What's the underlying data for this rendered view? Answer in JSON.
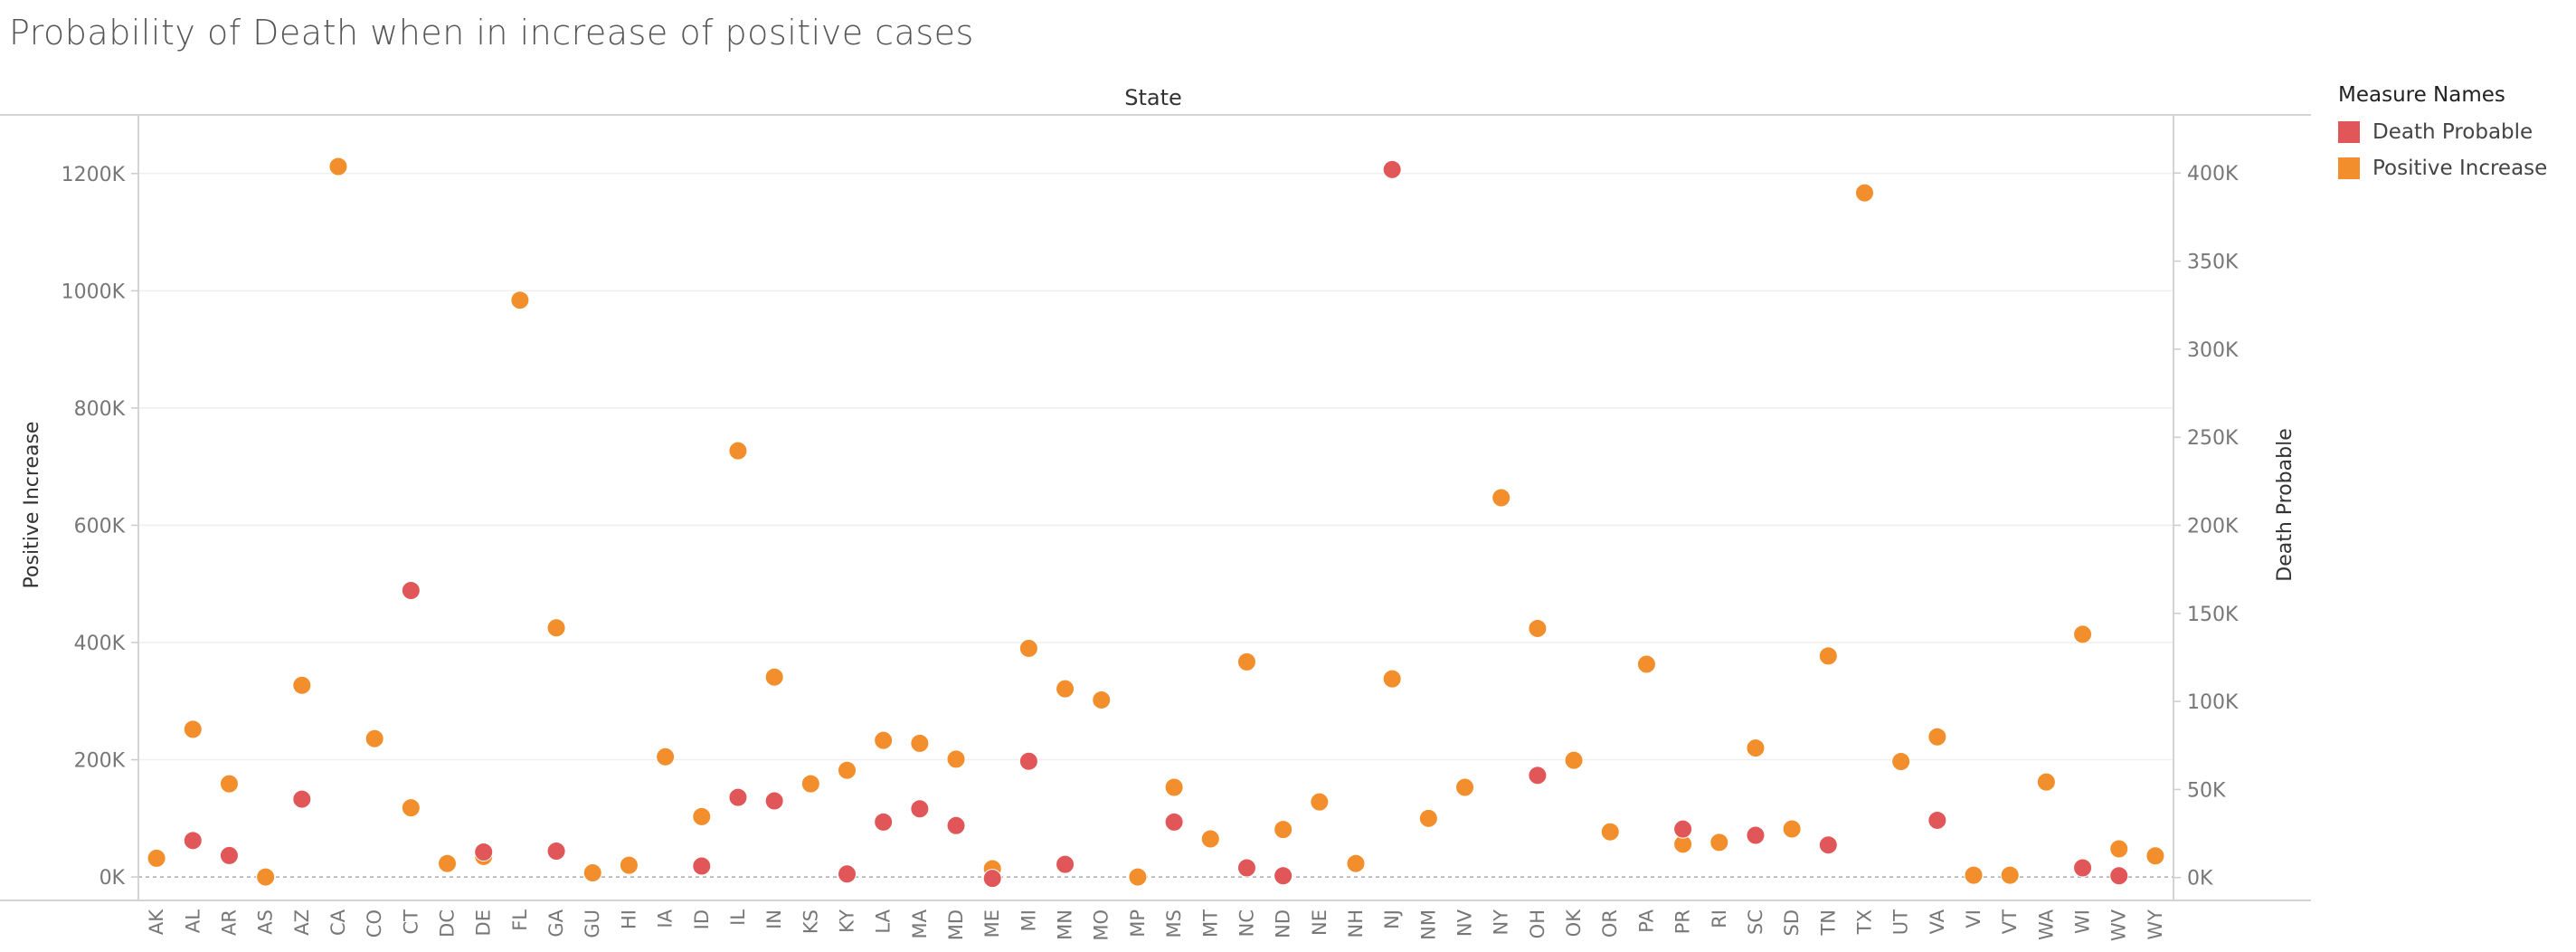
{
  "title": "Probability of Death when in increase of positive cases",
  "chart_data": {
    "type": "scatter",
    "title": "Probability of Death when in increase of positive cases",
    "column_header": "State",
    "xlabel": "",
    "y_left_label": "Positive Increase",
    "y_right_label": "Death Probable",
    "y_left_ticks": [
      "0K",
      "200K",
      "400K",
      "600K",
      "800K",
      "1000K",
      "1200K"
    ],
    "y_right_ticks": [
      "0K",
      "50K",
      "100K",
      "150K",
      "200K",
      "250K",
      "300K",
      "350K",
      "400K"
    ],
    "y_left_lim": [
      -40000,
      1300000
    ],
    "y_right_lim": [
      -13000,
      433000
    ],
    "grid": true,
    "legend_position": "right",
    "categories": [
      "AK",
      "AL",
      "AR",
      "AS",
      "AZ",
      "CA",
      "CO",
      "CT",
      "DC",
      "DE",
      "FL",
      "GA",
      "GU",
      "HI",
      "IA",
      "ID",
      "IL",
      "IN",
      "KS",
      "KY",
      "LA",
      "MA",
      "MD",
      "ME",
      "MI",
      "MN",
      "MO",
      "MP",
      "MS",
      "MT",
      "NC",
      "ND",
      "NE",
      "NH",
      "NJ",
      "NM",
      "NV",
      "NY",
      "OH",
      "OK",
      "OR",
      "PA",
      "PR",
      "RI",
      "SC",
      "SD",
      "TN",
      "TX",
      "UT",
      "VA",
      "VI",
      "VT",
      "WA",
      "WI",
      "WV",
      "WY"
    ],
    "series": [
      {
        "name": "Death Probable",
        "color": "#e15759",
        "axis": "right",
        "values": [
          null,
          21000,
          12500,
          null,
          44500,
          null,
          null,
          163000,
          null,
          14500,
          null,
          15000,
          null,
          null,
          null,
          6500,
          45500,
          43500,
          null,
          2000,
          31500,
          39000,
          29500,
          -500,
          66000,
          7500,
          null,
          null,
          31500,
          null,
          5500,
          1000,
          null,
          null,
          402000,
          null,
          null,
          null,
          58000,
          null,
          null,
          null,
          27500,
          null,
          24000,
          null,
          18500,
          null,
          null,
          32500,
          null,
          null,
          null,
          5500,
          1000,
          null
        ]
      },
      {
        "name": "Positive Increase",
        "color": "#f28e2b",
        "axis": "left",
        "values": [
          32000,
          252000,
          159000,
          0,
          327000,
          1212000,
          236000,
          118000,
          23000,
          35000,
          984000,
          425000,
          7000,
          20000,
          205000,
          103000,
          727000,
          341000,
          159000,
          182000,
          233000,
          228000,
          201000,
          14000,
          390000,
          321000,
          302000,
          0,
          153000,
          65000,
          367000,
          81000,
          128000,
          23000,
          338000,
          100000,
          153000,
          647000,
          424000,
          199000,
          77000,
          363000,
          56000,
          59000,
          220000,
          82000,
          377000,
          1167000,
          197000,
          239000,
          3000,
          3000,
          162000,
          414000,
          48000,
          36000
        ]
      }
    ]
  }
}
